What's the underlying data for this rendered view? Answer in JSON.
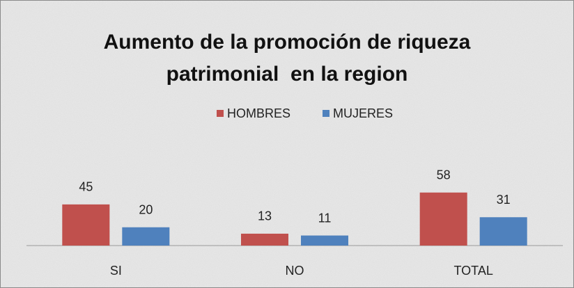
{
  "chart_data": {
    "type": "bar",
    "title": [
      "Aumento de la promoción de riqueza",
      "patrimonial  en la region"
    ],
    "categories": [
      "SI",
      "NO",
      "TOTAL"
    ],
    "series": [
      {
        "name": "HOMBRES",
        "color": "#c0504d",
        "values": [
          45,
          13,
          58
        ]
      },
      {
        "name": "MUJERES",
        "color": "#4f81bd",
        "values": [
          20,
          11,
          31
        ]
      }
    ],
    "ylim": [
      0,
      70
    ],
    "legend": "top"
  }
}
